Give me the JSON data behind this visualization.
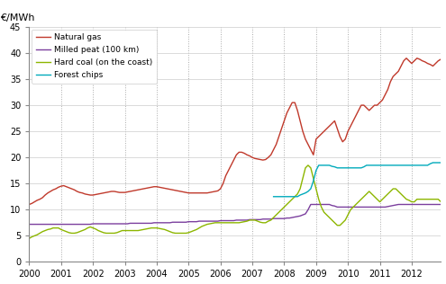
{
  "ylabel": "€/MWh",
  "xlim": [
    2000,
    2012.92
  ],
  "ylim": [
    0,
    45
  ],
  "yticks": [
    0,
    5,
    10,
    15,
    20,
    25,
    30,
    35,
    40,
    45
  ],
  "xticks": [
    2000,
    2001,
    2002,
    2003,
    2004,
    2005,
    2006,
    2007,
    2008,
    2009,
    2010,
    2011,
    2012
  ],
  "natural_gas_color": "#c0392b",
  "milled_peat_color": "#7b3f9e",
  "hard_coal_color": "#8db600",
  "forest_chips_color": "#00aabb",
  "legend_labels": [
    "Natural gas",
    "Milled peat (100 km)",
    "Hard coal (on the coast)",
    "Forest chips"
  ],
  "natural_gas": [
    11.0,
    11.2,
    11.5,
    11.8,
    12.0,
    12.3,
    12.8,
    13.2,
    13.5,
    13.8,
    14.0,
    14.3,
    14.5,
    14.6,
    14.4,
    14.2,
    14.0,
    13.8,
    13.5,
    13.3,
    13.2,
    13.0,
    12.9,
    12.8,
    12.8,
    12.9,
    13.0,
    13.1,
    13.2,
    13.3,
    13.4,
    13.5,
    13.5,
    13.4,
    13.3,
    13.3,
    13.3,
    13.4,
    13.5,
    13.6,
    13.7,
    13.8,
    13.9,
    14.0,
    14.1,
    14.2,
    14.3,
    14.4,
    14.4,
    14.3,
    14.2,
    14.1,
    14.0,
    13.9,
    13.8,
    13.7,
    13.6,
    13.5,
    13.4,
    13.3,
    13.2,
    13.2,
    13.2,
    13.2,
    13.2,
    13.2,
    13.2,
    13.2,
    13.3,
    13.4,
    13.5,
    13.6,
    14.0,
    15.0,
    16.5,
    17.5,
    18.5,
    19.5,
    20.5,
    21.0,
    21.0,
    20.8,
    20.5,
    20.3,
    20.0,
    19.8,
    19.7,
    19.6,
    19.5,
    19.6,
    20.0,
    20.5,
    21.5,
    22.5,
    24.0,
    25.5,
    27.0,
    28.5,
    29.5,
    30.5,
    30.5,
    29.0,
    27.0,
    25.0,
    23.5,
    22.5,
    21.5,
    20.5,
    23.5,
    24.0,
    24.5,
    25.0,
    25.5,
    26.0,
    26.5,
    27.0,
    25.5,
    24.0,
    23.0,
    23.5,
    25.0,
    26.0,
    27.0,
    28.0,
    29.0,
    30.0,
    30.0,
    29.5,
    29.0,
    29.5,
    30.0,
    30.0,
    30.5,
    31.0,
    32.0,
    33.0,
    34.5,
    35.5,
    36.0,
    36.5,
    37.5,
    38.5,
    39.0,
    38.5,
    38.0,
    38.5,
    39.0,
    38.8,
    38.5,
    38.3,
    38.0,
    37.8,
    37.5,
    38.0,
    38.5,
    38.8
  ],
  "milled_peat": [
    7.2,
    7.2,
    7.2,
    7.2,
    7.2,
    7.2,
    7.2,
    7.2,
    7.2,
    7.2,
    7.2,
    7.2,
    7.2,
    7.2,
    7.2,
    7.2,
    7.2,
    7.2,
    7.2,
    7.2,
    7.2,
    7.2,
    7.2,
    7.2,
    7.3,
    7.3,
    7.3,
    7.3,
    7.3,
    7.3,
    7.3,
    7.3,
    7.3,
    7.3,
    7.3,
    7.3,
    7.3,
    7.3,
    7.4,
    7.4,
    7.4,
    7.4,
    7.4,
    7.4,
    7.4,
    7.4,
    7.4,
    7.5,
    7.5,
    7.5,
    7.5,
    7.5,
    7.5,
    7.5,
    7.6,
    7.6,
    7.6,
    7.6,
    7.6,
    7.6,
    7.7,
    7.7,
    7.7,
    7.7,
    7.8,
    7.8,
    7.8,
    7.8,
    7.8,
    7.8,
    7.8,
    7.8,
    7.9,
    7.9,
    7.9,
    7.9,
    7.9,
    7.9,
    8.0,
    8.0,
    8.0,
    8.0,
    8.0,
    8.1,
    8.1,
    8.1,
    8.1,
    8.1,
    8.2,
    8.2,
    8.2,
    8.2,
    8.3,
    8.3,
    8.3,
    8.3,
    8.3,
    8.4,
    8.4,
    8.5,
    8.6,
    8.7,
    8.8,
    9.0,
    9.2,
    10.0,
    11.0,
    11.0,
    11.0,
    11.0,
    11.0,
    11.0,
    11.0,
    11.0,
    10.8,
    10.7,
    10.5,
    10.5,
    10.5,
    10.5,
    10.5,
    10.5,
    10.5,
    10.5,
    10.5,
    10.5,
    10.5,
    10.5,
    10.5,
    10.5,
    10.5,
    10.5,
    10.5,
    10.5,
    10.5,
    10.6,
    10.7,
    10.8,
    10.9,
    11.0,
    11.0,
    11.0,
    11.0,
    11.0,
    11.0,
    11.0,
    11.0,
    11.0,
    11.0,
    11.0,
    11.0,
    11.0,
    11.0,
    11.0,
    11.0,
    11.0
  ],
  "hard_coal": [
    4.5,
    4.8,
    5.0,
    5.2,
    5.5,
    5.8,
    6.0,
    6.2,
    6.3,
    6.5,
    6.5,
    6.5,
    6.2,
    6.0,
    5.8,
    5.6,
    5.5,
    5.5,
    5.6,
    5.8,
    6.0,
    6.2,
    6.5,
    6.7,
    6.5,
    6.3,
    6.0,
    5.8,
    5.6,
    5.5,
    5.5,
    5.5,
    5.5,
    5.6,
    5.8,
    6.0,
    6.0,
    6.0,
    6.0,
    6.0,
    6.0,
    6.0,
    6.1,
    6.2,
    6.3,
    6.4,
    6.5,
    6.5,
    6.5,
    6.4,
    6.3,
    6.2,
    6.0,
    5.8,
    5.6,
    5.5,
    5.5,
    5.5,
    5.5,
    5.5,
    5.6,
    5.8,
    6.0,
    6.2,
    6.5,
    6.8,
    7.0,
    7.2,
    7.3,
    7.4,
    7.5,
    7.5,
    7.5,
    7.5,
    7.5,
    7.5,
    7.5,
    7.5,
    7.5,
    7.5,
    7.6,
    7.7,
    7.8,
    8.0,
    8.0,
    8.0,
    7.8,
    7.6,
    7.5,
    7.5,
    7.8,
    8.0,
    8.5,
    9.0,
    9.5,
    10.0,
    10.5,
    11.0,
    11.5,
    12.0,
    12.5,
    13.0,
    14.0,
    16.0,
    18.0,
    18.5,
    18.0,
    16.0,
    14.0,
    12.0,
    10.5,
    9.5,
    9.0,
    8.5,
    8.0,
    7.5,
    7.0,
    7.0,
    7.5,
    8.0,
    9.0,
    10.0,
    10.5,
    11.0,
    11.5,
    12.0,
    12.5,
    13.0,
    13.5,
    13.0,
    12.5,
    12.0,
    11.5,
    12.0,
    12.5,
    13.0,
    13.5,
    14.0,
    14.0,
    13.5,
    13.0,
    12.5,
    12.0,
    11.8,
    11.5,
    11.5,
    12.0,
    12.0,
    12.0,
    12.0,
    12.0,
    12.0,
    12.0,
    12.0,
    12.0,
    11.5
  ],
  "forest_chips": [
    null,
    null,
    null,
    null,
    null,
    null,
    null,
    null,
    null,
    null,
    null,
    null,
    null,
    null,
    null,
    null,
    null,
    null,
    null,
    null,
    null,
    null,
    null,
    null,
    null,
    null,
    null,
    null,
    null,
    null,
    null,
    null,
    null,
    null,
    null,
    null,
    null,
    null,
    null,
    null,
    null,
    null,
    null,
    null,
    null,
    null,
    null,
    null,
    null,
    null,
    null,
    null,
    null,
    null,
    null,
    null,
    null,
    null,
    null,
    null,
    null,
    null,
    null,
    null,
    null,
    null,
    null,
    null,
    null,
    null,
    null,
    null,
    null,
    null,
    null,
    null,
    null,
    null,
    null,
    null,
    null,
    null,
    null,
    null,
    null,
    null,
    null,
    null,
    null,
    null,
    null,
    null,
    12.5,
    12.5,
    12.5,
    12.5,
    12.5,
    12.5,
    12.5,
    12.5,
    12.5,
    12.5,
    12.8,
    13.0,
    13.2,
    13.5,
    14.0,
    15.5,
    17.5,
    18.5,
    18.5,
    18.5,
    18.5,
    18.5,
    18.3,
    18.2,
    18.0,
    18.0,
    18.0,
    18.0,
    18.0,
    18.0,
    18.0,
    18.0,
    18.0,
    18.0,
    18.2,
    18.5,
    18.5,
    18.5,
    18.5,
    18.5,
    18.5,
    18.5,
    18.5,
    18.5,
    18.5,
    18.5,
    18.5,
    18.5,
    18.5,
    18.5,
    18.5,
    18.5,
    18.5,
    18.5,
    18.5,
    18.5,
    18.5,
    18.5,
    18.5,
    18.8,
    19.0,
    19.0,
    19.0,
    19.0
  ]
}
